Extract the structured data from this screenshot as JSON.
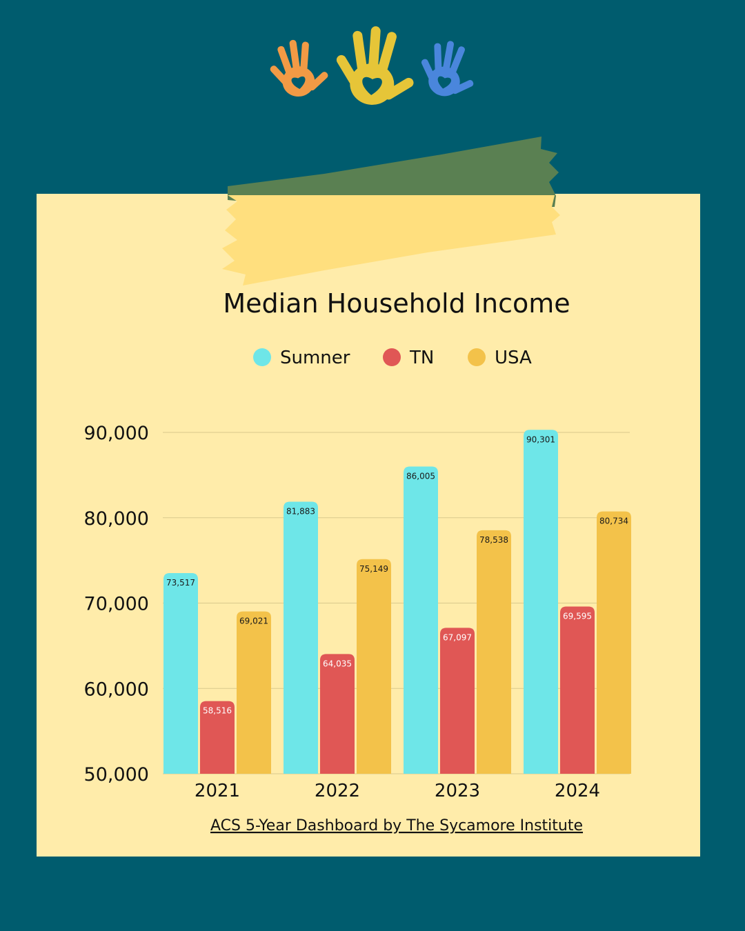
{
  "colors": {
    "background": "#005c6e",
    "paper": "#ffecaa",
    "tape_green": "#5a8052",
    "tape_yellow": "#ffdf7e",
    "Sumner": "#6ee6e8",
    "TN": "#e05755",
    "USA": "#f3c24a",
    "gridline": "#d9c98c"
  },
  "decorations": {
    "hands": [
      "orange-handprint-icon",
      "yellow-handprint-icon",
      "blue-handprint-icon"
    ],
    "hand_colors": [
      "#f29a45",
      "#e6c538",
      "#4a86dc"
    ]
  },
  "source_link": "ACS 5-Year Dashboard by The Sycamore Institute",
  "chart_data": {
    "type": "bar",
    "title": "Median Household Income",
    "categories": [
      "2021",
      "2022",
      "2023",
      "2024"
    ],
    "series": [
      {
        "name": "Sumner",
        "values": [
          73517,
          81883,
          86005,
          90301
        ],
        "labels": [
          "73,517",
          "81,883",
          "86,005",
          "90,301"
        ]
      },
      {
        "name": "TN",
        "values": [
          58516,
          64035,
          67097,
          69595
        ],
        "labels": [
          "58,516",
          "64,035",
          "67,097",
          "69,595"
        ]
      },
      {
        "name": "USA",
        "values": [
          69021,
          75149,
          78538,
          80734
        ],
        "labels": [
          "69,021",
          "75,149",
          "78,538",
          "80,734"
        ]
      }
    ],
    "ylim": [
      50000,
      90000
    ],
    "yticks": [
      50000,
      60000,
      70000,
      80000,
      90000
    ],
    "ytick_labels": [
      "50,000",
      "60,000",
      "70,000",
      "80,000",
      "90,000"
    ],
    "grid": true,
    "legend_position": "top-center",
    "xlabel": "",
    "ylabel": ""
  }
}
